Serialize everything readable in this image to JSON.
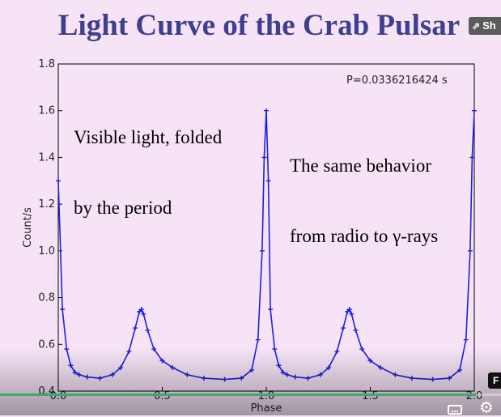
{
  "slide": {
    "title": "Light Curve of the Crab Pulsar",
    "annotation_left_line1": "Visible light, folded",
    "annotation_left_line2": "by the period",
    "annotation_right_line1": "The same behavior",
    "annotation_right_line2": "from radio to γ-rays",
    "period_label": "P=0.0336216424 s"
  },
  "player": {
    "share_label": "Sh",
    "share_icon": "share-icon",
    "fullscreen_hint": "F",
    "captions_icon": "captions-icon",
    "settings_icon": "gear-icon",
    "progress_fraction": 0.95,
    "colors": {
      "progress": "#3ea86b"
    }
  },
  "chart_data": {
    "type": "scatter",
    "xlabel": "Phase",
    "ylabel": "Count/s",
    "xlim": [
      0.0,
      2.0
    ],
    "ylim": [
      0.4,
      1.8
    ],
    "xticks": [
      "0.0",
      "0.5",
      "1.0",
      "1.5",
      "2.0"
    ],
    "yticks": [
      "0.4",
      "0.6",
      "0.8",
      "1.0",
      "1.2",
      "1.4",
      "1.6",
      "1.8"
    ],
    "marker": "+",
    "color": "#2020e0",
    "grid": false,
    "series": [
      {
        "x": [
          0.0,
          0.02,
          0.04,
          0.06,
          0.08,
          0.1,
          0.14,
          0.2,
          0.26,
          0.3,
          0.34,
          0.37,
          0.39,
          0.4,
          0.41,
          0.43,
          0.46,
          0.5,
          0.55,
          0.62,
          0.7,
          0.8,
          0.88,
          0.93,
          0.96,
          0.98,
          0.99,
          1.0,
          1.01,
          1.02,
          1.04,
          1.06,
          1.08,
          1.1,
          1.14,
          1.2,
          1.26,
          1.3,
          1.34,
          1.37,
          1.39,
          1.4,
          1.41,
          1.43,
          1.46,
          1.5,
          1.55,
          1.62,
          1.7,
          1.8,
          1.88,
          1.93,
          1.96,
          1.98,
          1.99,
          2.0
        ],
        "y": [
          1.3,
          0.75,
          0.58,
          0.51,
          0.48,
          0.47,
          0.46,
          0.455,
          0.47,
          0.5,
          0.57,
          0.67,
          0.74,
          0.75,
          0.73,
          0.66,
          0.58,
          0.53,
          0.5,
          0.47,
          0.455,
          0.45,
          0.455,
          0.49,
          0.62,
          1.0,
          1.4,
          1.6,
          1.3,
          0.75,
          0.58,
          0.51,
          0.48,
          0.47,
          0.46,
          0.455,
          0.47,
          0.5,
          0.57,
          0.67,
          0.74,
          0.75,
          0.73,
          0.66,
          0.58,
          0.53,
          0.5,
          0.47,
          0.455,
          0.45,
          0.455,
          0.49,
          0.62,
          1.0,
          1.4,
          1.6
        ]
      }
    ]
  }
}
